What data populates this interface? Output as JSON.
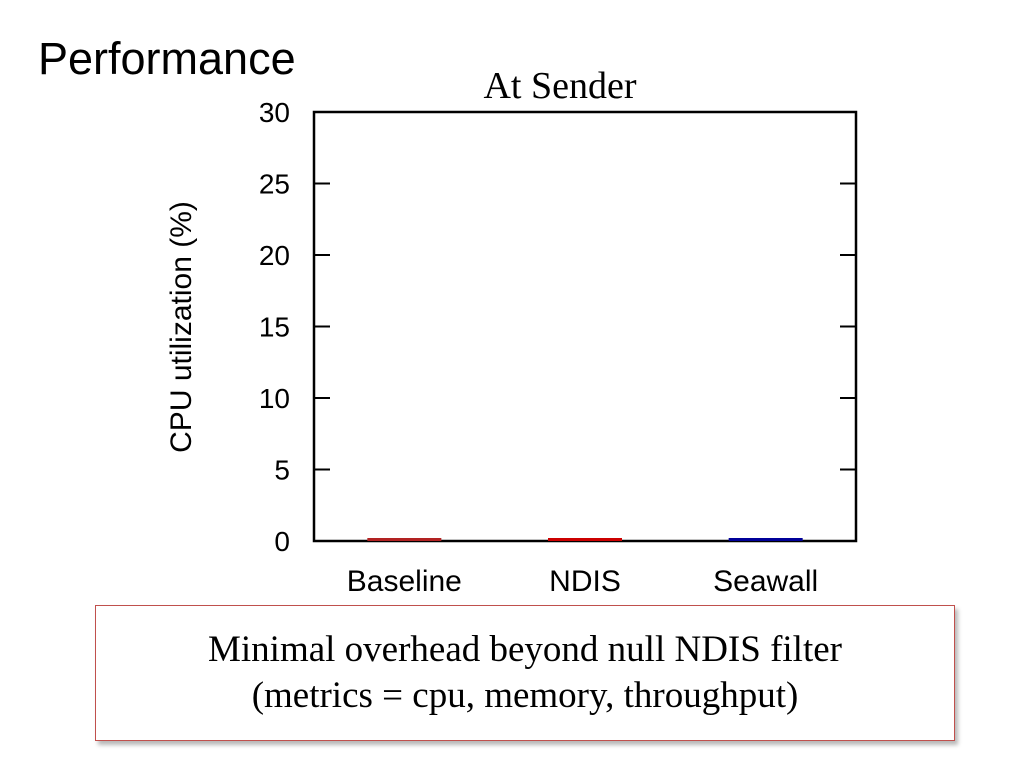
{
  "slide": {
    "title": "Performance"
  },
  "callout": {
    "line1": "Minimal overhead beyond null NDIS filter",
    "line2": "(metrics = cpu, memory, throughput)"
  },
  "chart_data": {
    "type": "bar",
    "title": "At Sender",
    "xlabel": "",
    "ylabel": "CPU utilization (%)",
    "categories": [
      "Baseline",
      "NDIS",
      "Seawall"
    ],
    "values": [
      0.2,
      0.2,
      0.2
    ],
    "bar_colors": [
      "#b22222",
      "#cc0000",
      "#000099"
    ],
    "ylim": [
      0,
      30
    ],
    "yticks": [
      0,
      5,
      10,
      15,
      20,
      25,
      30
    ],
    "grid": false,
    "legend": "none"
  }
}
